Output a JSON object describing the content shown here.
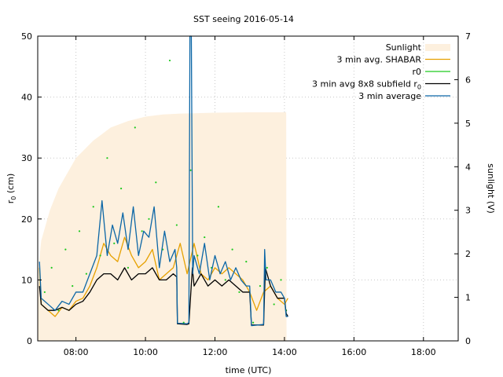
{
  "chart_data": {
    "type": "line",
    "title": "SST seeing 2016-05-14",
    "xlabel": "time (UTC)",
    "ylabel": "r",
    "ylabel_sub": "0",
    "ylabel_unit": " (cm)",
    "y2label": "sunlight (V)",
    "xlim": [
      6.9,
      19.0
    ],
    "ylim": [
      0,
      50
    ],
    "y2lim": [
      0,
      7
    ],
    "x_ticks": [
      {
        "v": 8,
        "label": "08:00"
      },
      {
        "v": 10,
        "label": "10:00"
      },
      {
        "v": 12,
        "label": "12:00"
      },
      {
        "v": 14,
        "label": "14:00"
      },
      {
        "v": 16,
        "label": "16:00"
      },
      {
        "v": 18,
        "label": "18:00"
      }
    ],
    "y_ticks": [
      {
        "v": 0,
        "label": "0"
      },
      {
        "v": 10,
        "label": "10"
      },
      {
        "v": 20,
        "label": "20"
      },
      {
        "v": 30,
        "label": "30"
      },
      {
        "v": 40,
        "label": "40"
      },
      {
        "v": 50,
        "label": "50"
      }
    ],
    "y2_ticks": [
      {
        "v": 0,
        "label": "0"
      },
      {
        "v": 1,
        "label": "1"
      },
      {
        "v": 2,
        "label": "2"
      },
      {
        "v": 3,
        "label": "3"
      },
      {
        "v": 4,
        "label": "4"
      },
      {
        "v": 5,
        "label": "5"
      },
      {
        "v": 6,
        "label": "6"
      },
      {
        "v": 7,
        "label": "7"
      }
    ],
    "grid": true,
    "legend_position": "top-right",
    "legend": [
      {
        "key": "sun",
        "label": "Sunlight",
        "style": "fill",
        "color": "#fdf0de"
      },
      {
        "key": "shabar",
        "label": "3 min avg. SHABAR",
        "style": "line",
        "color": "#e6a100"
      },
      {
        "key": "r0",
        "label": "r0",
        "style": "line",
        "color": "#1ec91e"
      },
      {
        "key": "sub",
        "label": "3 min avg 8x8 subfield r",
        "label_sub": "0",
        "style": "line",
        "color": "#000000"
      },
      {
        "key": "avg",
        "label": "3 min average",
        "style": "line",
        "color": "#0b66a6"
      }
    ],
    "series": [
      {
        "key": "sun",
        "type": "area",
        "axis": "y2",
        "color": "#fdf0de",
        "x": [
          6.9,
          7.0,
          7.25,
          7.5,
          8.0,
          8.5,
          9.0,
          9.5,
          10.0,
          10.5,
          11.0,
          11.5,
          12.0,
          13.0,
          14.05,
          14.06
        ],
        "values": [
          1.5,
          2.3,
          3.0,
          3.5,
          4.2,
          4.6,
          4.9,
          5.05,
          5.15,
          5.2,
          5.22,
          5.23,
          5.24,
          5.25,
          5.25,
          0
        ]
      },
      {
        "key": "shabar",
        "type": "line",
        "axis": "y",
        "color": "#e6a100",
        "x": [
          6.95,
          7.0,
          7.2,
          7.4,
          7.6,
          7.8,
          8.0,
          8.2,
          8.4,
          8.6,
          8.8,
          9.0,
          9.2,
          9.4,
          9.6,
          9.8,
          10.0,
          10.2,
          10.4,
          10.6,
          10.8,
          11.0,
          11.2,
          11.4,
          11.6,
          11.8,
          12.0,
          12.2,
          12.4,
          12.6,
          12.8,
          13.0,
          13.2,
          13.4,
          13.6,
          13.8,
          14.0,
          14.1
        ],
        "values": [
          12,
          6,
          5,
          4,
          5.5,
          5,
          6.5,
          7,
          9,
          12,
          16,
          14,
          13,
          17,
          14,
          12,
          13,
          15,
          10,
          11,
          12,
          16,
          11,
          16,
          11,
          10,
          12,
          11,
          12,
          11,
          10,
          8,
          5,
          8,
          9,
          7,
          6,
          7
        ]
      },
      {
        "key": "r0",
        "type": "scatter",
        "axis": "y",
        "color": "#1ec91e",
        "x": [
          7.1,
          7.3,
          7.5,
          7.7,
          7.9,
          8.1,
          8.3,
          8.5,
          8.7,
          8.9,
          9.1,
          9.3,
          9.5,
          9.7,
          9.9,
          10.1,
          10.3,
          10.5,
          10.7,
          10.9,
          11.1,
          11.3,
          11.5,
          11.7,
          11.9,
          12.1,
          12.3,
          12.5,
          12.7,
          12.9,
          13.1,
          13.3,
          13.5,
          13.7,
          13.9,
          14.05
        ],
        "values": [
          8,
          12,
          5,
          15,
          9,
          18,
          11,
          22,
          14,
          30,
          16,
          25,
          12,
          35,
          18,
          20,
          26,
          15,
          46,
          19,
          3,
          28,
          14,
          17,
          12,
          22,
          10,
          15,
          8,
          13,
          3,
          9,
          12,
          6,
          10,
          5
        ]
      },
      {
        "key": "sub",
        "type": "line",
        "axis": "y",
        "color": "#000000",
        "x": [
          6.95,
          7.0,
          7.2,
          7.4,
          7.6,
          7.8,
          8.0,
          8.2,
          8.4,
          8.6,
          8.8,
          9.0,
          9.2,
          9.4,
          9.6,
          9.8,
          10.0,
          10.2,
          10.4,
          10.6,
          10.8,
          10.9,
          10.92,
          11.2,
          11.25,
          11.35,
          11.4,
          11.6,
          11.8,
          12.0,
          12.2,
          12.4,
          12.6,
          12.8,
          13.0,
          13.05,
          13.4,
          13.45,
          13.6,
          13.8,
          14.0,
          14.05,
          14.1
        ],
        "values": [
          9,
          6,
          5,
          5,
          5.5,
          5,
          6,
          6.5,
          8,
          10,
          11,
          11,
          10,
          12,
          10,
          11,
          11,
          12,
          10,
          10,
          11,
          10.5,
          2.8,
          2.7,
          2.8,
          12,
          9,
          11,
          9,
          10,
          9,
          10,
          9,
          8,
          8,
          2.6,
          2.6,
          12,
          9,
          7,
          7,
          4.5,
          4
        ]
      },
      {
        "key": "avg",
        "type": "line",
        "axis": "y",
        "color": "#0b66a6",
        "x": [
          6.95,
          7.0,
          7.2,
          7.4,
          7.6,
          7.8,
          8.0,
          8.2,
          8.4,
          8.6,
          8.75,
          8.9,
          9.05,
          9.2,
          9.35,
          9.5,
          9.65,
          9.8,
          9.95,
          10.1,
          10.25,
          10.4,
          10.55,
          10.7,
          10.85,
          10.9,
          10.92,
          11.2,
          11.25,
          11.28,
          11.32,
          11.36,
          11.4,
          11.55,
          11.7,
          11.85,
          12.0,
          12.15,
          12.3,
          12.45,
          12.6,
          12.75,
          12.9,
          13.0,
          13.05,
          13.4,
          13.43,
          13.47,
          13.6,
          13.75,
          13.9,
          14.0,
          14.05,
          14.1
        ],
        "values": [
          13,
          7,
          6,
          5,
          6.5,
          6,
          8,
          8,
          11,
          14,
          23,
          14,
          19,
          16,
          21,
          15,
          22,
          14,
          18,
          17,
          22,
          12,
          18,
          13,
          15,
          12,
          2.9,
          2.8,
          3,
          50,
          50,
          11,
          14,
          11,
          16,
          10,
          14,
          11,
          13,
          10,
          12,
          10,
          9,
          9,
          2.5,
          2.7,
          15,
          10,
          10,
          8,
          8,
          7,
          4,
          4
        ]
      }
    ]
  }
}
